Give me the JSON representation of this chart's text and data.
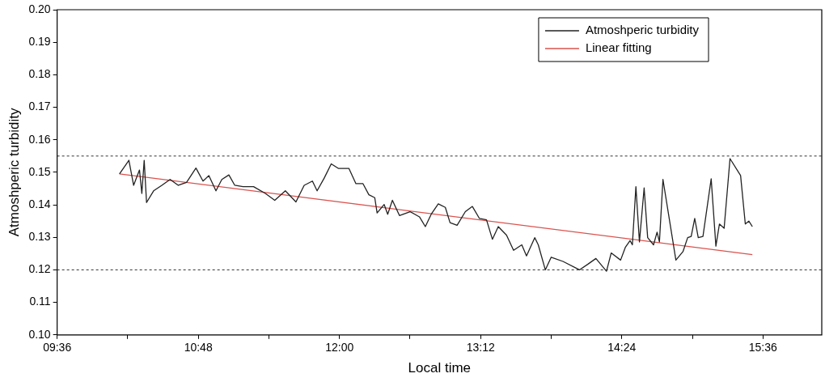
{
  "chart_data": {
    "type": "line",
    "xlabel": "Local time",
    "ylabel": "Atmoshperic turbidity",
    "xlim": [
      9.6,
      16.1
    ],
    "ylim": [
      0.1,
      0.2
    ],
    "xticks": [
      {
        "value": 9.6,
        "label": "09:36"
      },
      {
        "value": 10.2,
        "label": null
      },
      {
        "value": 10.8,
        "label": "10:48"
      },
      {
        "value": 11.4,
        "label": null
      },
      {
        "value": 12.0,
        "label": "12:00"
      },
      {
        "value": 12.6,
        "label": null
      },
      {
        "value": 13.2,
        "label": "13:12"
      },
      {
        "value": 13.8,
        "label": null
      },
      {
        "value": 14.4,
        "label": "14:24"
      },
      {
        "value": 15.0,
        "label": null
      },
      {
        "value": 15.6,
        "label": "15:36"
      }
    ],
    "yticks": [
      {
        "value": 0.1,
        "label": "0.10"
      },
      0.11,
      0.12,
      0.13,
      0.14,
      0.15,
      0.16,
      0.17,
      0.18,
      0.19,
      {
        "value": 0.2,
        "label": "0.20"
      }
    ],
    "grid": false,
    "legend": "top right",
    "marker": "none",
    "line_style": "solid",
    "ref_lines": [
      {
        "axis": "y",
        "value": 0.155,
        "color": "#333333",
        "line_style": "dotted"
      },
      {
        "axis": "y",
        "value": 0.12,
        "color": "#333333",
        "line_style": "dotted"
      }
    ],
    "series": [
      {
        "name": "Atmoshperic turbidity",
        "color": "#222222",
        "x": [
          10.13,
          10.21,
          10.25,
          10.3,
          10.32,
          10.34,
          10.36,
          10.42,
          10.49,
          10.56,
          10.63,
          10.7,
          10.78,
          10.84,
          10.89,
          10.95,
          11.0,
          11.06,
          11.11,
          11.18,
          11.27,
          11.37,
          11.45,
          11.54,
          11.63,
          11.7,
          11.77,
          11.81,
          11.87,
          11.93,
          11.99,
          12.08,
          12.14,
          12.2,
          12.25,
          12.3,
          12.32,
          12.38,
          12.41,
          12.45,
          12.51,
          12.6,
          12.68,
          12.73,
          12.78,
          12.84,
          12.9,
          12.94,
          13.0,
          13.07,
          13.13,
          13.19,
          13.25,
          13.3,
          13.35,
          13.42,
          13.48,
          13.55,
          13.59,
          13.66,
          13.69,
          13.75,
          13.8,
          13.9,
          14.04,
          14.11,
          14.18,
          14.27,
          14.31,
          14.39,
          14.43,
          14.47,
          14.49,
          14.52,
          14.55,
          14.59,
          14.62,
          14.67,
          14.7,
          14.72,
          14.75,
          14.86,
          14.92,
          14.96,
          14.99,
          15.02,
          15.05,
          15.09,
          15.16,
          15.2,
          15.23,
          15.27,
          15.32,
          15.41,
          15.45,
          15.48,
          15.51
        ],
        "values": [
          0.1495,
          0.1537,
          0.146,
          0.1507,
          0.1435,
          0.1537,
          0.1407,
          0.1443,
          0.146,
          0.1478,
          0.146,
          0.1469,
          0.1513,
          0.1473,
          0.149,
          0.1443,
          0.1478,
          0.1492,
          0.146,
          0.1456,
          0.1456,
          0.1435,
          0.1414,
          0.1443,
          0.1409,
          0.146,
          0.1473,
          0.1443,
          0.1482,
          0.1526,
          0.1512,
          0.1512,
          0.1465,
          0.1465,
          0.1431,
          0.1422,
          0.1375,
          0.1401,
          0.1371,
          0.1414,
          0.1367,
          0.1379,
          0.1363,
          0.1333,
          0.1371,
          0.1403,
          0.1392,
          0.1345,
          0.1337,
          0.1379,
          0.1395,
          0.1358,
          0.1354,
          0.1294,
          0.1333,
          0.1307,
          0.126,
          0.1277,
          0.1243,
          0.1299,
          0.1277,
          0.12,
          0.1239,
          0.1226,
          0.12,
          0.1217,
          0.1235,
          0.1196,
          0.1252,
          0.123,
          0.1269,
          0.129,
          0.1277,
          0.1456,
          0.1286,
          0.1452,
          0.1299,
          0.1277,
          0.1316,
          0.1286,
          0.1478,
          0.123,
          0.1256,
          0.1299,
          0.1303,
          0.1358,
          0.1299,
          0.1303,
          0.148,
          0.1273,
          0.1341,
          0.1328,
          0.1542,
          0.149,
          0.1341,
          0.135,
          0.1333
        ]
      },
      {
        "name": "Linear fitting",
        "color": "#d9534f",
        "x": [
          10.13,
          15.51
        ],
        "values": [
          0.1495,
          0.1247
        ]
      }
    ]
  }
}
